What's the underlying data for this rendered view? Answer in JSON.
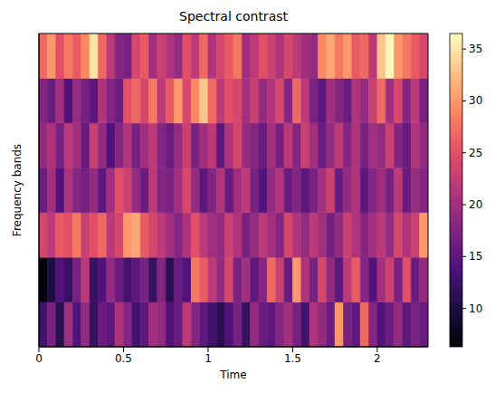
{
  "chart_data": {
    "type": "heatmap",
    "title": "Spectral contrast",
    "x_label": "Time",
    "y_label": "Frequency bands",
    "x": [
      0.025,
      0.075,
      0.125,
      0.175,
      0.225,
      0.275,
      0.325,
      0.375,
      0.425,
      0.475,
      0.525,
      0.575,
      0.625,
      0.675,
      0.725,
      0.775,
      0.825,
      0.875,
      0.925,
      0.975,
      1.025,
      1.075,
      1.125,
      1.175,
      1.225,
      1.275,
      1.325,
      1.375,
      1.425,
      1.475,
      1.525,
      1.575,
      1.625,
      1.675,
      1.725,
      1.775,
      1.825,
      1.875,
      1.925,
      1.975,
      2.025,
      2.075,
      2.125,
      2.175,
      2.225,
      2.275
    ],
    "xlim": [
      0,
      2.3
    ],
    "xticks": [
      0,
      0.5,
      1,
      1.5,
      2
    ],
    "ylim": [
      0,
      7
    ],
    "tick_labels": "x",
    "cells": [
      [
        13,
        17,
        11,
        20,
        14,
        19,
        12,
        16,
        15,
        21,
        18,
        13,
        15,
        20,
        19,
        14,
        16,
        22,
        18,
        15,
        13,
        11,
        14,
        17,
        12,
        19,
        16,
        15,
        18,
        20,
        17,
        13,
        21,
        19,
        16,
        30,
        17,
        15,
        27,
        18,
        14,
        16,
        19,
        15,
        17,
        16
      ],
      [
        7,
        10,
        14,
        12,
        17,
        22,
        12,
        14,
        19,
        16,
        13,
        15,
        17,
        12,
        18,
        11,
        16,
        14,
        28,
        26,
        22,
        19,
        24,
        17,
        20,
        15,
        18,
        27,
        23,
        16,
        30,
        21,
        17,
        24,
        19,
        15,
        22,
        26,
        18,
        14,
        20,
        23,
        17,
        25,
        16,
        19
      ],
      [
        24,
        22,
        26,
        25,
        28,
        23,
        25,
        27,
        22,
        24,
        30,
        31,
        26,
        24,
        22,
        20,
        18,
        21,
        25,
        22,
        20,
        19,
        23,
        21,
        17,
        19,
        22,
        20,
        18,
        24,
        21,
        19,
        22,
        20,
        17,
        19,
        23,
        21,
        18,
        20,
        22,
        19,
        24,
        21,
        23,
        30
      ],
      [
        16,
        20,
        14,
        21,
        18,
        17,
        19,
        15,
        20,
        25,
        23,
        19,
        16,
        22,
        18,
        17,
        20,
        24,
        19,
        15,
        18,
        21,
        16,
        20,
        22,
        17,
        14,
        19,
        21,
        16,
        18,
        15,
        17,
        20,
        23,
        16,
        19,
        21,
        15,
        18,
        20,
        17,
        22,
        16,
        19,
        18
      ],
      [
        19,
        21,
        17,
        22,
        20,
        16,
        23,
        19,
        14,
        18,
        21,
        17,
        20,
        22,
        18,
        16,
        19,
        23,
        17,
        20,
        22,
        15,
        21,
        24,
        19,
        18,
        16,
        20,
        17,
        22,
        18,
        23,
        20,
        16,
        19,
        22,
        18,
        21,
        17,
        20,
        19,
        23,
        18,
        16,
        21,
        19
      ],
      [
        18,
        16,
        20,
        14,
        19,
        17,
        15,
        21,
        18,
        16,
        25,
        27,
        24,
        28,
        22,
        26,
        30,
        24,
        29,
        33,
        27,
        22,
        25,
        24,
        20,
        23,
        19,
        21,
        24,
        18,
        27,
        22,
        17,
        15,
        20,
        18,
        16,
        21,
        19,
        23,
        27,
        20,
        24,
        18,
        22,
        17
      ],
      [
        27,
        30,
        25,
        28,
        26,
        29,
        35,
        27,
        22,
        18,
        17,
        24,
        26,
        20,
        23,
        21,
        19,
        25,
        22,
        27,
        21,
        24,
        26,
        28,
        20,
        22,
        25,
        23,
        21,
        24,
        22,
        20,
        19,
        29,
        31,
        28,
        30,
        26,
        27,
        22,
        33,
        36,
        30,
        28,
        26,
        24
      ]
    ],
    "colorbar": {
      "range": [
        6.3,
        36.5
      ],
      "ticks": [
        10,
        15,
        20,
        25,
        30,
        35
      ]
    }
  }
}
